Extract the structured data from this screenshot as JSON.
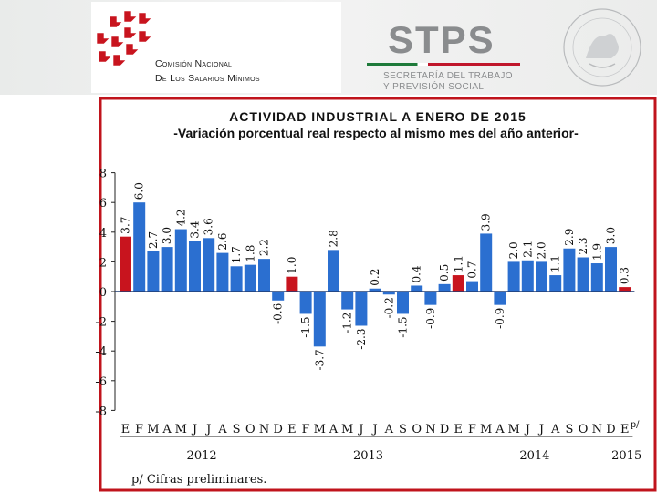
{
  "header": {
    "commission_line1": "Comisión Nacional",
    "commission_line2": "De Los Salarios Mínimos",
    "brand": "STPS",
    "secretariat_line1": "SECRETARÍA DEL TRABAJO",
    "secretariat_line2": "Y PREVISIÓN SOCIAL",
    "seal_text": "ESTADOS UNIDOS MEXICANOS"
  },
  "colors": {
    "bar_blue": "#2b6fd0",
    "bar_red": "#c8141e",
    "border_red": "#c0141c",
    "zero_line": "#1f3b70"
  },
  "chart_data": {
    "type": "bar",
    "title": "ACTIVIDAD INDUSTRIAL A ENERO DE 2015",
    "subtitle": "-Variación porcentual real respecto al mismo mes del año anterior-",
    "categories": [
      "E",
      "F",
      "M",
      "A",
      "M",
      "J",
      "J",
      "A",
      "S",
      "O",
      "N",
      "D",
      "E",
      "F",
      "M",
      "A",
      "M",
      "J",
      "J",
      "A",
      "S",
      "O",
      "N",
      "D",
      "E",
      "F",
      "M",
      "A",
      "M",
      "J",
      "J",
      "A",
      "S",
      "O",
      "N",
      "D",
      "E"
    ],
    "values": [
      3.7,
      6.0,
      2.7,
      3.0,
      4.2,
      3.4,
      3.6,
      2.6,
      1.7,
      1.8,
      2.2,
      -0.6,
      1.0,
      -1.5,
      -3.7,
      2.8,
      -1.2,
      -2.3,
      0.2,
      -0.2,
      -1.5,
      0.4,
      -0.9,
      0.5,
      1.1,
      0.7,
      3.9,
      -0.9,
      2.0,
      2.1,
      2.0,
      1.1,
      2.9,
      2.3,
      1.9,
      3.0,
      0.3
    ],
    "labels": [
      "3.7",
      "6.0",
      "2.7",
      "3.0",
      "4.2",
      "3.4",
      "3.6",
      "2.6",
      "1.7",
      "1.8",
      "2.2",
      "-0.6",
      "1.0",
      "-1.5",
      "-3.7",
      "2.8",
      "-1.2",
      "-2.3",
      "0.2",
      "-0.2",
      "-1.5",
      "0.4",
      "-0.9",
      "0.5",
      "1.1",
      "0.7",
      "3.9",
      "-0.9",
      "2.0",
      "2.1",
      "2.0",
      "1.1",
      "2.9",
      "2.3",
      "1.9",
      "3.0",
      "0.3"
    ],
    "red_indices": [
      0,
      12,
      24,
      36
    ],
    "year_labels": [
      "2012",
      "2013",
      "2014",
      "2015"
    ],
    "year_start_index": [
      0,
      12,
      24,
      36
    ],
    "last_category_marker": "p/",
    "ylim": [
      -8,
      8
    ],
    "yticks": [
      -8,
      -6,
      -4,
      -2,
      0,
      2,
      4,
      6,
      8
    ],
    "footnote": "p/ Cifras preliminares.",
    "xlabel": "",
    "ylabel": ""
  }
}
